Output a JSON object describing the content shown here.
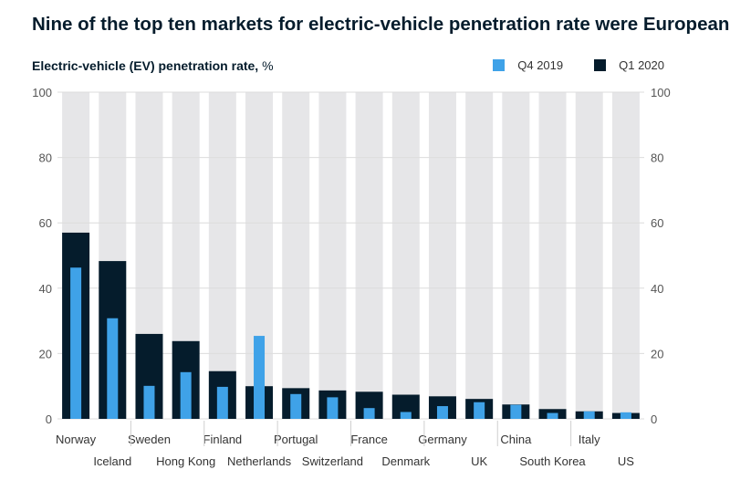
{
  "chart_data": {
    "type": "bar",
    "title": "Nine of the top ten markets for electric-vehicle penetration rate were European.",
    "ylabel": "Electric-vehicle (EV) penetration rate,",
    "yunit": "%",
    "ylim": [
      0,
      100
    ],
    "yticks": [
      0,
      20,
      40,
      60,
      80,
      100
    ],
    "grid": true,
    "legend_position": "top-right",
    "categories": [
      "Norway",
      "Iceland",
      "Sweden",
      "Hong Kong",
      "Finland",
      "Netherlands",
      "Portugal",
      "Switzerland",
      "France",
      "Denmark",
      "Germany",
      "UK",
      "China",
      "South Korea",
      "Italy",
      "US"
    ],
    "series": [
      {
        "name": "Q4 2019",
        "values": [
          46.3,
          30.8,
          10.1,
          14.3,
          9.8,
          25.4,
          7.6,
          6.6,
          3.3,
          2.1,
          3.9,
          5.1,
          4.3,
          1.8,
          2.3,
          2.0
        ]
      },
      {
        "name": "Q1 2020",
        "values": [
          57.0,
          48.3,
          26.0,
          23.8,
          14.6,
          10.0,
          9.4,
          8.7,
          8.3,
          7.4,
          6.9,
          6.1,
          4.4,
          3.0,
          2.3,
          1.8
        ]
      }
    ],
    "colors": {
      "q4_2019": "#3fa2e8",
      "q1_2020": "#051c2c",
      "background_bar": "#e6e6e8",
      "grid": "#dcdcdc",
      "axis_text": "#555555"
    }
  }
}
